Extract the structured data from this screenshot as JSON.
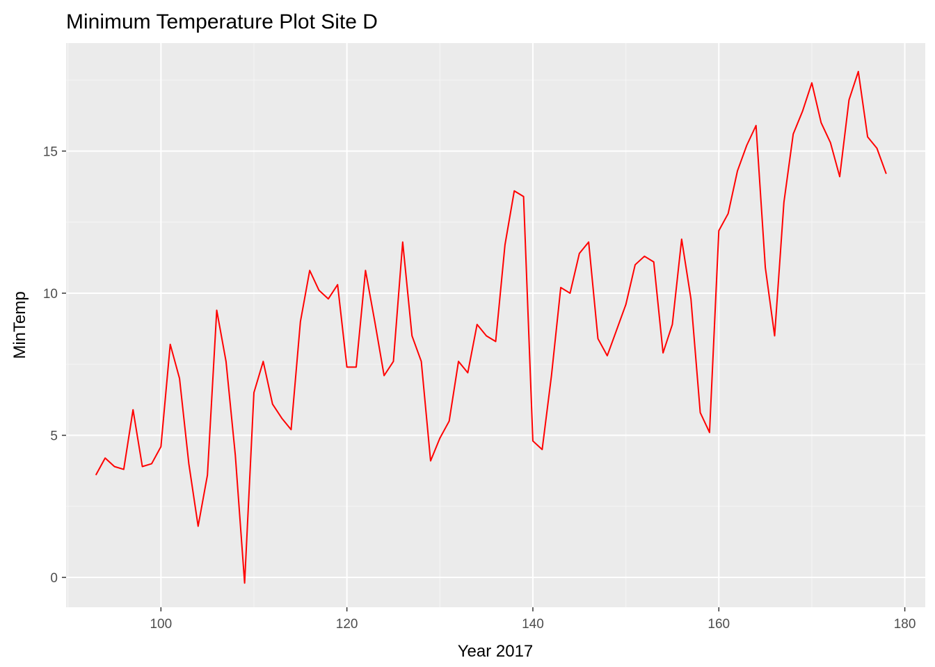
{
  "chart_data": {
    "type": "line",
    "title": "Minimum Temperature Plot Site D",
    "xlabel": "Year 2017",
    "ylabel": "MinTemp",
    "xlim": [
      89.8,
      182.2
    ],
    "ylim": [
      -1.05,
      18.8
    ],
    "x_ticks": [
      100,
      120,
      140,
      160,
      180
    ],
    "x_tick_labels": [
      "100",
      "120",
      "140",
      "160",
      "180"
    ],
    "x_minor_ticks": [
      90,
      110,
      130,
      150,
      170
    ],
    "y_ticks": [
      0,
      5,
      10,
      15
    ],
    "y_tick_labels": [
      "0",
      "5",
      "10",
      "15"
    ],
    "y_minor_ticks": [
      2.5,
      7.5,
      12.5,
      17.5
    ],
    "grid": true,
    "series": [
      {
        "color": "#ff0000",
        "x": [
          93,
          94,
          95,
          96,
          97,
          98,
          99,
          100,
          101,
          102,
          103,
          104,
          105,
          106,
          107,
          108,
          109,
          110,
          111,
          112,
          113,
          114,
          115,
          116,
          117,
          118,
          119,
          120,
          121,
          122,
          123,
          124,
          125,
          126,
          127,
          128,
          129,
          130,
          131,
          132,
          133,
          134,
          135,
          136,
          137,
          138,
          139,
          140,
          141,
          142,
          143,
          144,
          145,
          146,
          147,
          148,
          149,
          150,
          151,
          152,
          153,
          154,
          155,
          156,
          157,
          158,
          159,
          160,
          161,
          162,
          163,
          164,
          165,
          166,
          167,
          168,
          169,
          170,
          171,
          172,
          173,
          174,
          175,
          176,
          177,
          178
        ],
        "y": [
          3.6,
          4.2,
          3.9,
          3.8,
          5.9,
          3.9,
          4.0,
          4.6,
          8.2,
          7.0,
          4.0,
          1.8,
          3.6,
          9.4,
          7.6,
          4.3,
          -0.2,
          6.5,
          7.6,
          6.1,
          5.6,
          5.2,
          9.0,
          10.8,
          10.1,
          9.8,
          10.3,
          7.4,
          7.4,
          10.8,
          9.0,
          7.1,
          7.6,
          11.8,
          8.5,
          7.6,
          4.1,
          4.9,
          5.5,
          7.6,
          7.2,
          8.9,
          8.5,
          8.3,
          11.7,
          13.6,
          13.4,
          4.8,
          4.5,
          7.1,
          10.2,
          10.0,
          11.4,
          11.8,
          8.4,
          7.8,
          8.7,
          9.6,
          11.0,
          11.3,
          11.1,
          7.9,
          8.9,
          11.9,
          9.8,
          5.8,
          5.1,
          12.2,
          12.8,
          14.3,
          15.2,
          15.9,
          10.9,
          8.5,
          13.2,
          15.6,
          16.4,
          17.4,
          16.0,
          15.3,
          14.1,
          16.8,
          17.8,
          15.5,
          15.1,
          14.2
        ]
      }
    ]
  },
  "colors": {
    "panel_bg": "#ebebeb",
    "grid_major": "#ffffff",
    "grid_minor": "#f5f5f5",
    "line": "#ff0000",
    "tick": "#333333"
  }
}
